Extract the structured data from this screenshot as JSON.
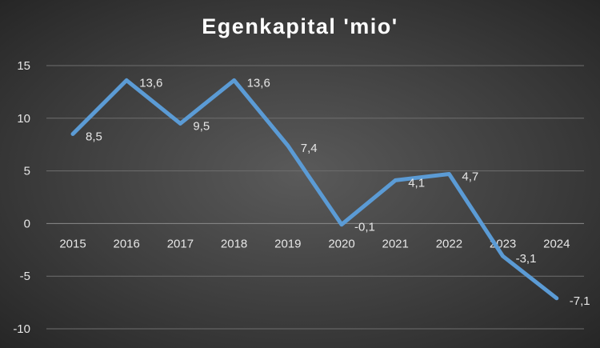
{
  "chart_data": {
    "type": "line",
    "title": "Egenkapital 'mio'",
    "categories": [
      "2015",
      "2016",
      "2017",
      "2018",
      "2019",
      "2020",
      "2021",
      "2022",
      "2023",
      "2024"
    ],
    "series": [
      {
        "values": [
          8.5,
          13.6,
          9.5,
          13.6,
          7.4,
          -0.1,
          4.1,
          4.7,
          -3.1,
          -7.1
        ],
        "data_labels": [
          "8,5",
          "13,6",
          "9,5",
          "13,6",
          "7,4",
          "-0,1",
          "4,1",
          "4,7",
          "-3,1",
          "-7,1"
        ],
        "color": "#5b9bd5"
      }
    ],
    "yticks": [
      15,
      10,
      5,
      0,
      -5,
      -10
    ],
    "ytick_labels": [
      "15",
      "10",
      "5",
      "0",
      "-5",
      "-10"
    ],
    "ylim": [
      -10,
      15
    ],
    "grid": true,
    "legend": "none",
    "colors": {
      "line": "#5b9bd5",
      "text": "#e6e6e6",
      "grid": "#6e6e6e"
    }
  }
}
